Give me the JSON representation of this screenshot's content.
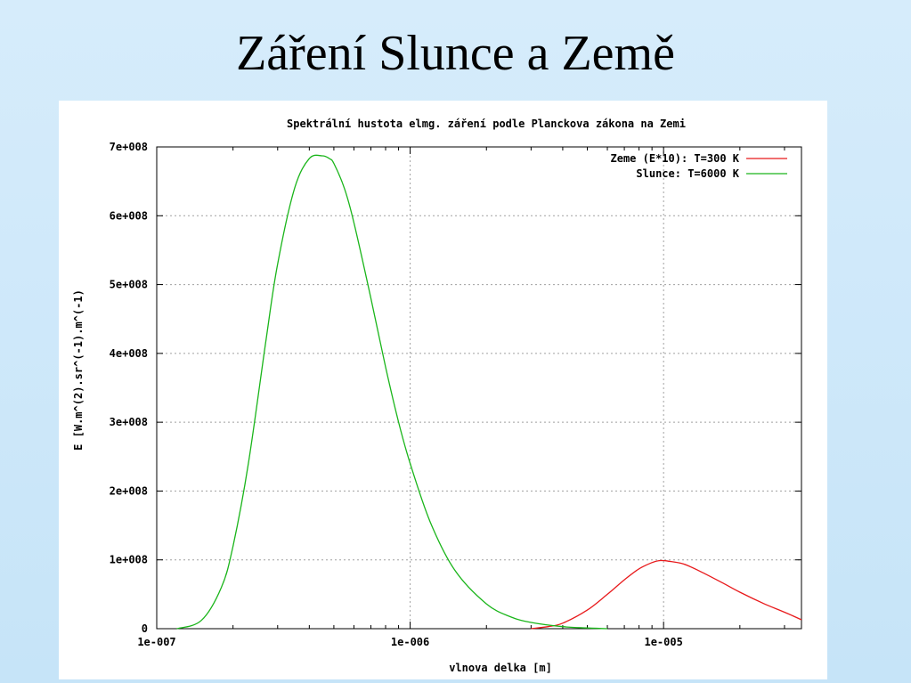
{
  "slide": {
    "title": "Záření Slunce a Země"
  },
  "chart_data": {
    "type": "line",
    "title": "Spektrální hustota elmg. záření podle Planckova zákona na Zemi",
    "xlabel": "vlnova delka [m]",
    "ylabel": "E [W.m^(2).sr^(-1).m^(-1)",
    "x_scale": "log",
    "xlim": [
      1e-07,
      3.5e-05
    ],
    "ylim": [
      0,
      700000000
    ],
    "x_ticks": [
      {
        "value": 1e-07,
        "label": "1e-007"
      },
      {
        "value": 1e-06,
        "label": "1e-006"
      },
      {
        "value": 1e-05,
        "label": "1e-005"
      }
    ],
    "y_ticks": [
      {
        "value": 0,
        "label": "0"
      },
      {
        "value": 100000000,
        "label": "1e+008"
      },
      {
        "value": 200000000,
        "label": "2e+008"
      },
      {
        "value": 300000000,
        "label": "3e+008"
      },
      {
        "value": 400000000,
        "label": "4e+008"
      },
      {
        "value": 500000000,
        "label": "5e+008"
      },
      {
        "value": 600000000,
        "label": "6e+008"
      },
      {
        "value": 700000000,
        "label": "7e+008"
      }
    ],
    "grid": true,
    "legend_position": "top-right",
    "series": [
      {
        "name": "Zeme (E*10): T=300 K",
        "color": "#e8191b",
        "x": [
          3e-06,
          3.5e-06,
          4e-06,
          5e-06,
          6e-06,
          7e-06,
          8e-06,
          9e-06,
          9.7e-06,
          1.05e-05,
          1.2e-05,
          1.4e-05,
          1.7e-05,
          2e-05,
          2.5e-05,
          3e-05,
          3.5e-05
        ],
        "values": [
          0,
          3000000,
          8000000,
          27000000,
          50000000,
          71000000,
          87000000,
          96000000,
          99000000,
          98000000,
          94000000,
          83000000,
          67000000,
          53000000,
          36000000,
          24000000,
          13000000
        ]
      },
      {
        "name": "Slunce: T=6000 K",
        "color": "#1ab51a",
        "x": [
          1.2e-07,
          1.5e-07,
          1.8e-07,
          2e-07,
          2.3e-07,
          2.7e-07,
          3e-07,
          3.5e-07,
          4e-07,
          4.5e-07,
          4.8e-07,
          5e-07,
          5.5e-07,
          6e-07,
          7e-07,
          8e-07,
          9e-07,
          1e-06,
          1.2e-06,
          1.5e-06,
          2e-06,
          2.5e-06,
          3e-06,
          4e-06,
          5e-06,
          6e-06
        ],
        "values": [
          0,
          12000000,
          60000000,
          120000000,
          240000000,
          420000000,
          530000000,
          640000000,
          683000000,
          687000000,
          683000000,
          676000000,
          640000000,
          590000000,
          480000000,
          380000000,
          300000000,
          240000000,
          155000000,
          85000000,
          36000000,
          17000000,
          9000000,
          3000000,
          1000000,
          0
        ]
      }
    ]
  }
}
